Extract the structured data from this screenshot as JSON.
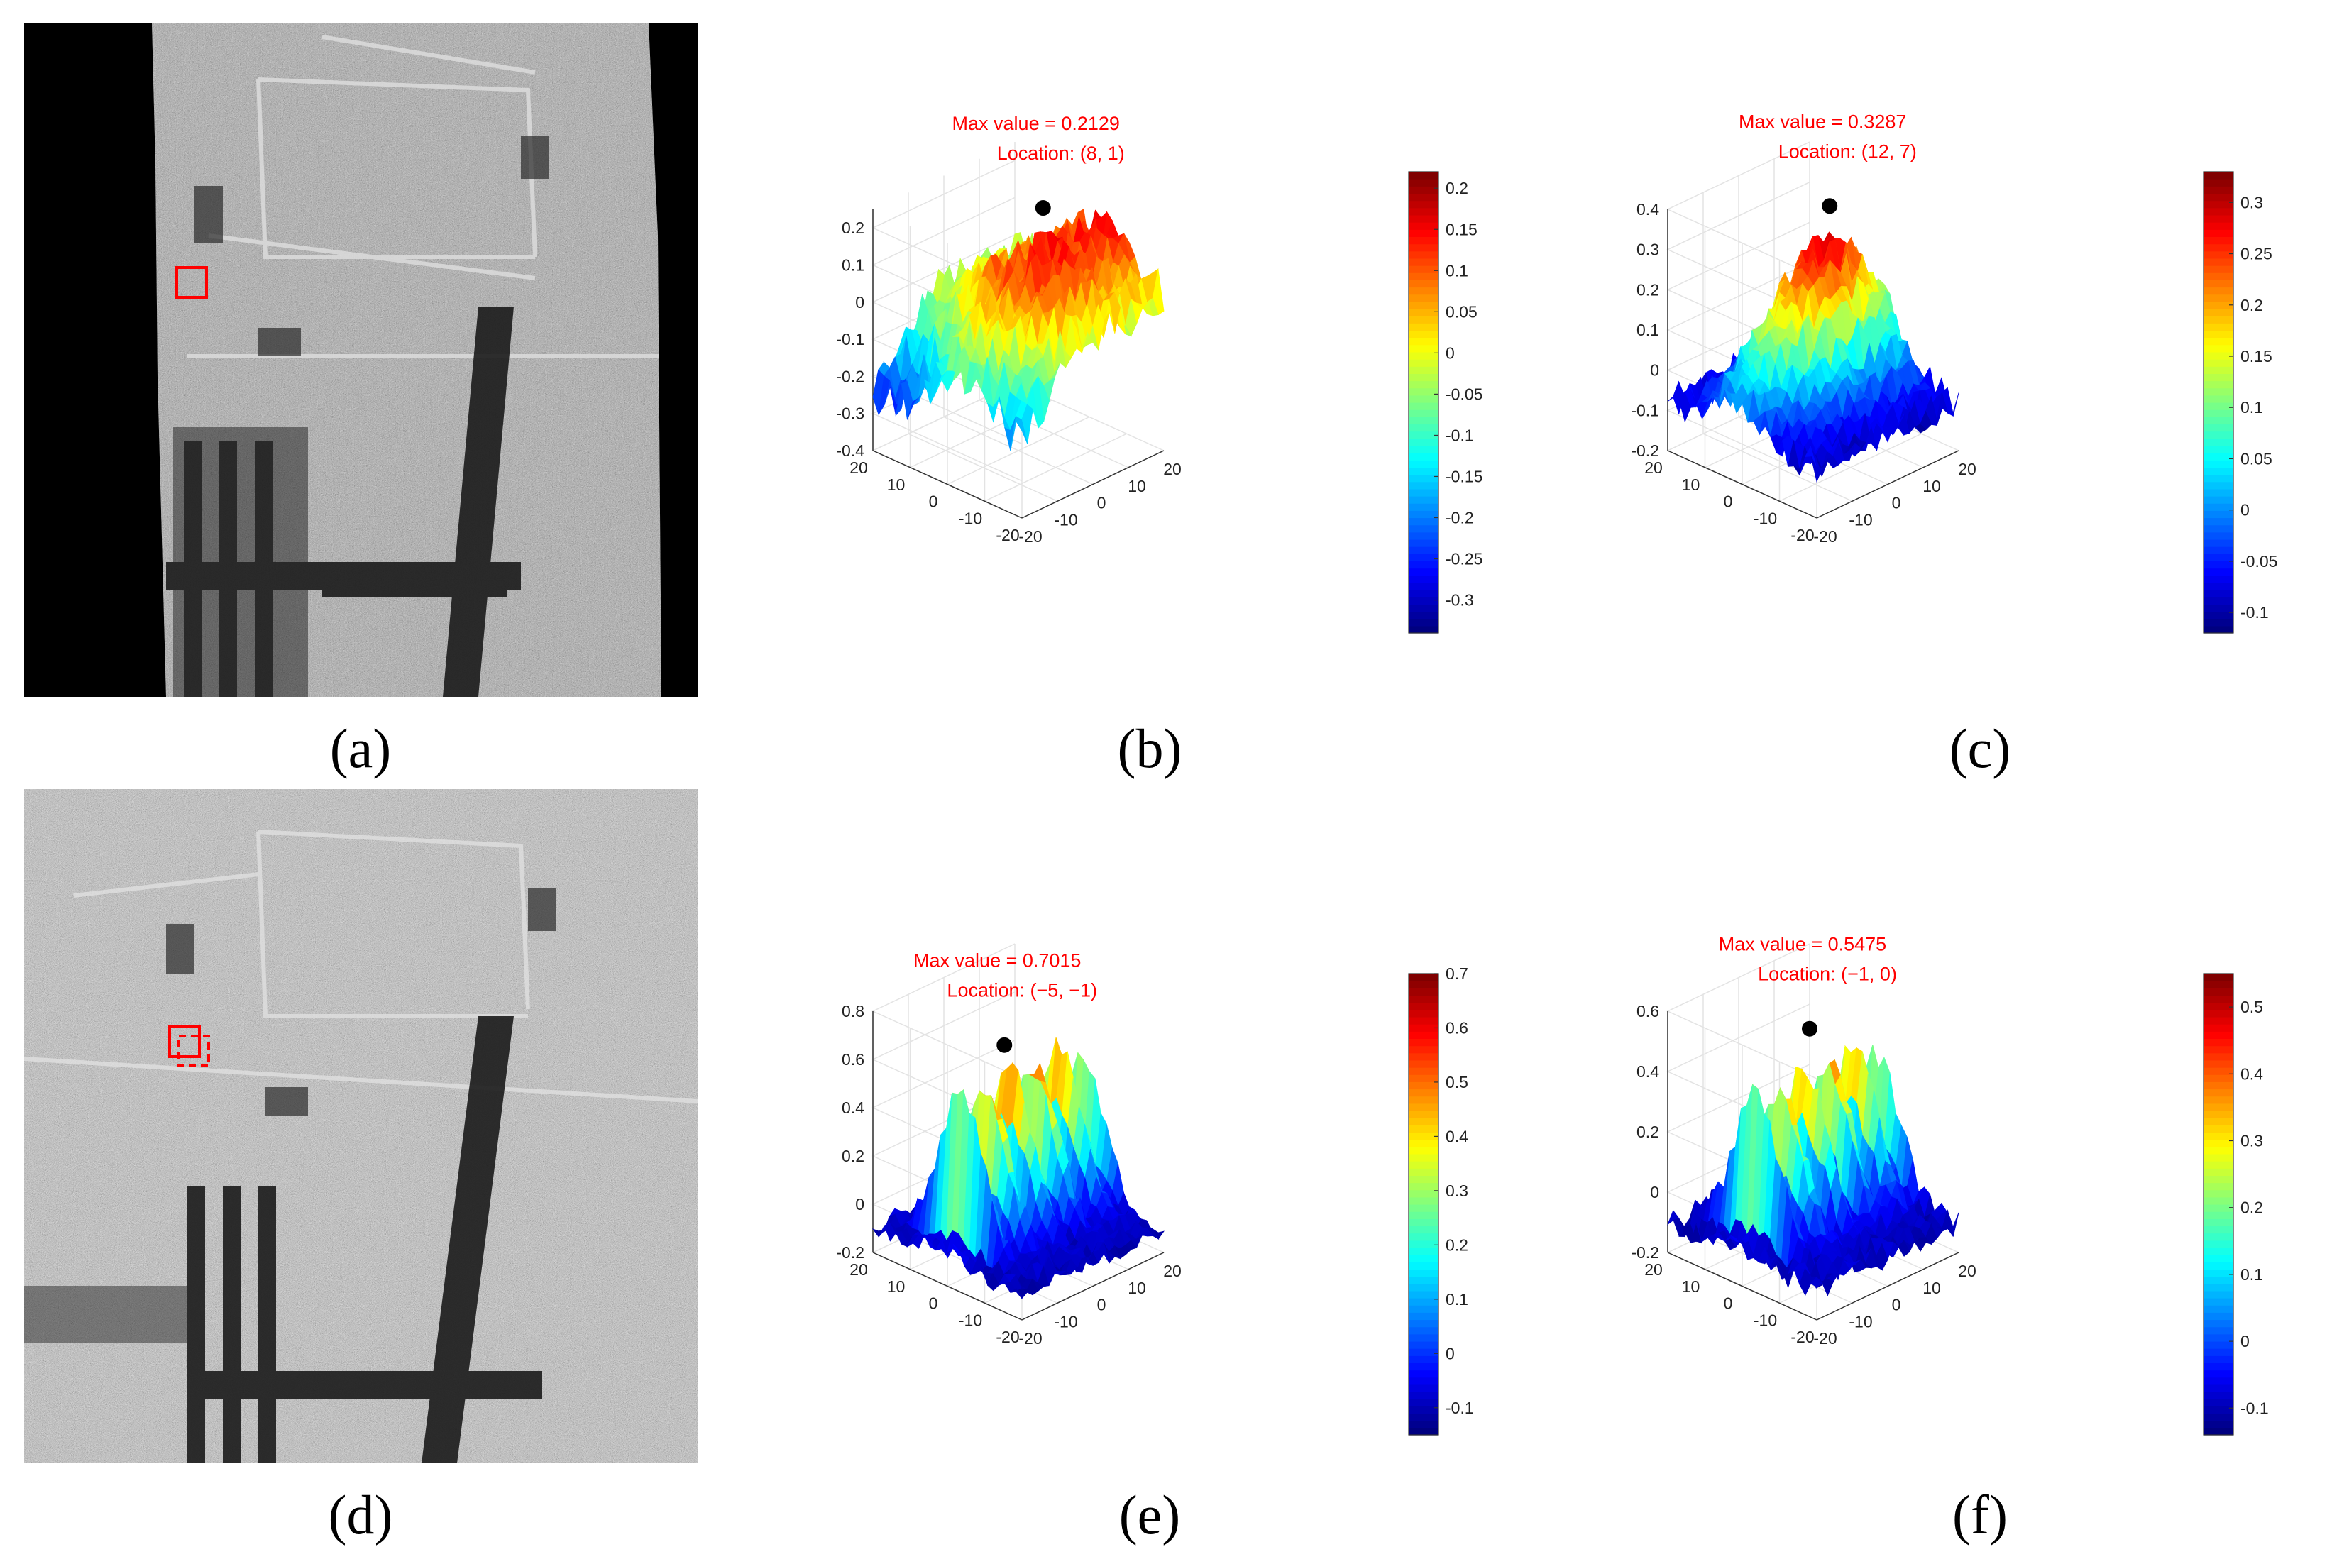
{
  "captions": {
    "a": "(a)",
    "b": "(b)",
    "c": "(c)",
    "d": "(d)",
    "e": "(e)",
    "f": "(f)"
  },
  "colormap": "jet",
  "chart_data": [
    {
      "id": "b",
      "type": "surface",
      "annotation": {
        "max_label": "Max value = 0.2129",
        "location_label": "Location: (8, 1)"
      },
      "peak": {
        "x": 8,
        "y": 1,
        "z": 0.2129
      },
      "x_ticks": [
        "-20",
        "-10",
        "0",
        "10",
        "20"
      ],
      "y_ticks": [
        "-20",
        "-10",
        "0",
        "10",
        "20"
      ],
      "z_ticks": [
        "-0.4",
        "-0.3",
        "-0.2",
        "-0.1",
        "0",
        "0.1",
        "0.2"
      ],
      "zlim": [
        -0.4,
        0.25
      ],
      "colorbar_ticks": [
        "-0.3",
        "-0.25",
        "-0.2",
        "-0.15",
        "-0.1",
        "-0.05",
        "0",
        "0.05",
        "0.1",
        "0.15",
        "0.2"
      ],
      "clim": [
        -0.34,
        0.22
      ]
    },
    {
      "id": "c",
      "type": "surface",
      "annotation": {
        "max_label": "Max value = 0.3287",
        "location_label": "Location: (12, 7)"
      },
      "peak": {
        "x": 12,
        "y": 7,
        "z": 0.3287
      },
      "x_ticks": [
        "-20",
        "-10",
        "0",
        "10",
        "20"
      ],
      "y_ticks": [
        "-20",
        "-10",
        "0",
        "10",
        "20"
      ],
      "z_ticks": [
        "-0.2",
        "-0.1",
        "0",
        "0.1",
        "0.2",
        "0.3",
        "0.4"
      ],
      "zlim": [
        -0.2,
        0.4
      ],
      "colorbar_ticks": [
        "-0.1",
        "-0.05",
        "0",
        "0.05",
        "0.1",
        "0.15",
        "0.2",
        "0.25",
        "0.3"
      ],
      "clim": [
        -0.12,
        0.33
      ]
    },
    {
      "id": "e",
      "type": "surface",
      "annotation": {
        "max_label": "Max value = 0.7015",
        "location_label": "Location: (−5, −1)"
      },
      "peak": {
        "x": -5,
        "y": -1,
        "z": 0.7015
      },
      "x_ticks": [
        "-20",
        "-10",
        "0",
        "10",
        "20"
      ],
      "y_ticks": [
        "-20",
        "-10",
        "0",
        "10",
        "20"
      ],
      "z_ticks": [
        "-0.2",
        "0",
        "0.2",
        "0.4",
        "0.6",
        "0.8"
      ],
      "zlim": [
        -0.2,
        0.8
      ],
      "colorbar_ticks": [
        "-0.1",
        "0",
        "0.1",
        "0.2",
        "0.3",
        "0.4",
        "0.5",
        "0.6",
        "0.7"
      ],
      "clim": [
        -0.15,
        0.7
      ]
    },
    {
      "id": "f",
      "type": "surface",
      "annotation": {
        "max_label": "Max value = 0.5475",
        "location_label": "Location: (−1, 0)"
      },
      "peak": {
        "x": -1,
        "y": 0,
        "z": 0.5475
      },
      "x_ticks": [
        "-20",
        "-10",
        "0",
        "10",
        "20"
      ],
      "y_ticks": [
        "-20",
        "-10",
        "0",
        "10",
        "20"
      ],
      "z_ticks": [
        "-0.2",
        "0",
        "0.2",
        "0.4",
        "0.6"
      ],
      "zlim": [
        -0.2,
        0.6
      ],
      "colorbar_ticks": [
        "-0.1",
        "0",
        "0.1",
        "0.2",
        "0.3",
        "0.4",
        "0.5"
      ],
      "clim": [
        -0.14,
        0.55
      ]
    }
  ]
}
